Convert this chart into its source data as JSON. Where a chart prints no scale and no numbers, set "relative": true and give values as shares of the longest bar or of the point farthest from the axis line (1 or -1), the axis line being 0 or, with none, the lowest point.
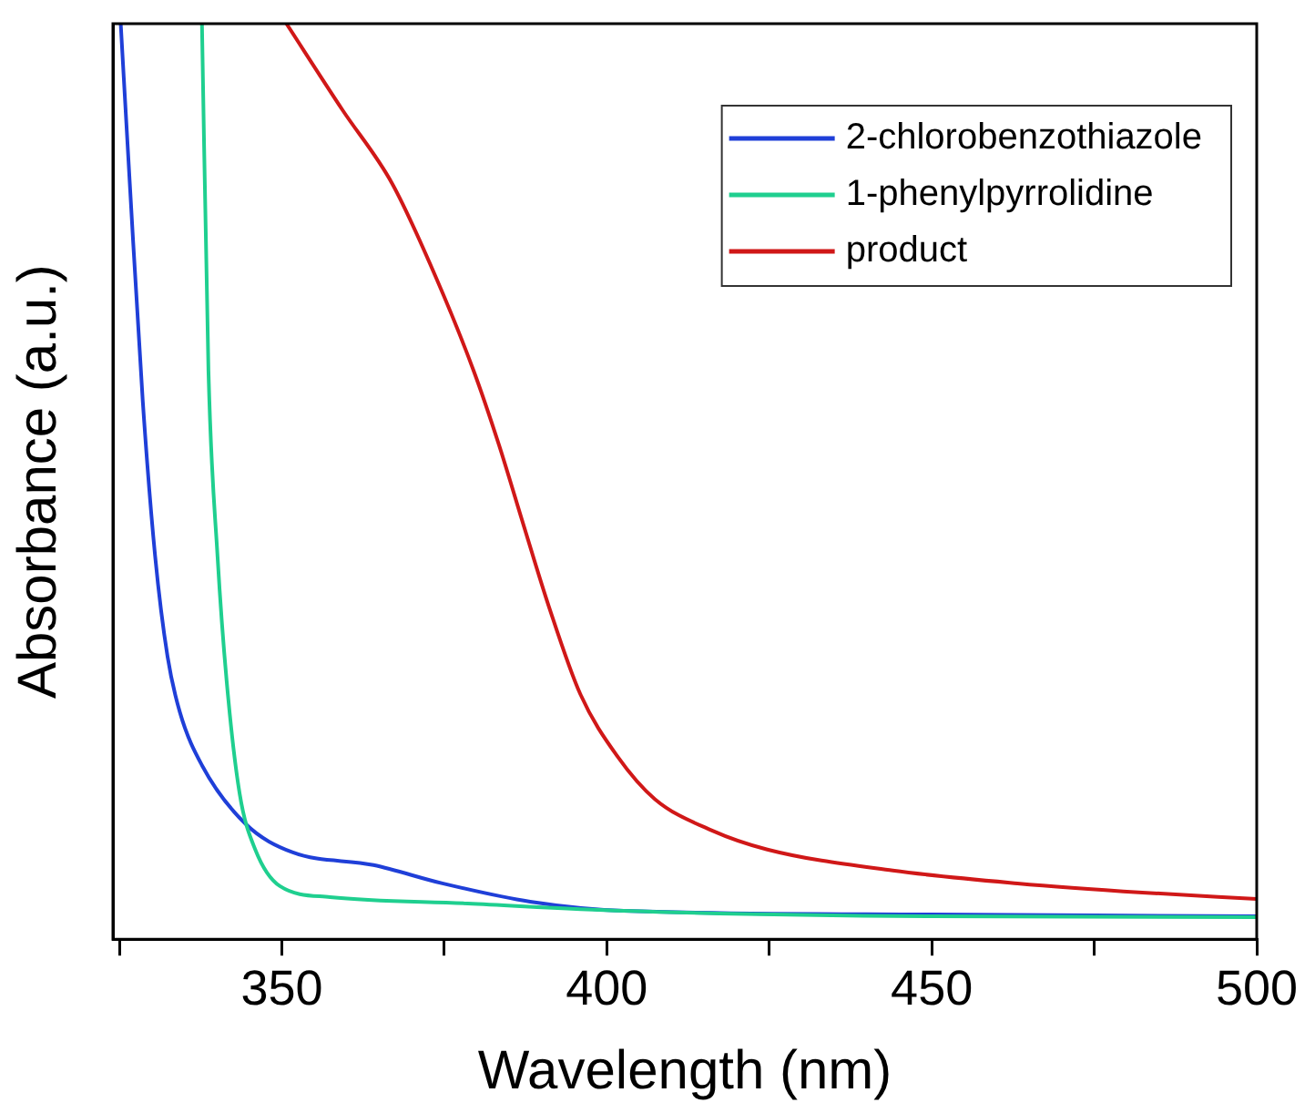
{
  "chart_data": {
    "type": "line",
    "xlabel": "Wavelength (nm)",
    "ylabel": "Absorbance (a.u.)",
    "relative": true,
    "xlim": [
      324,
      500
    ],
    "xticks": [
      {
        "value": 325,
        "label": null
      },
      350,
      {
        "value": 375,
        "label": null
      },
      400,
      {
        "value": 425,
        "label": null
      },
      450,
      {
        "value": 475,
        "label": null
      },
      500
    ],
    "tick_labels": "x",
    "grid": false,
    "legend": "top right",
    "marker": "none",
    "line_style": "solid",
    "series": [
      {
        "name": "2-chlorobenzothiazole",
        "color": "#1f3fd8",
        "x": [
          325.2,
          326.6,
          328.6,
          330.5,
          332.4,
          334.3,
          337.7,
          344.4,
          351.6,
          364.1,
          374.7,
          388.2,
          402.6,
          450,
          500
        ],
        "values": [
          1,
          0.825,
          0.587,
          0.418,
          0.309,
          0.248,
          0.19,
          0.126,
          0.095,
          0.081,
          0.061,
          0.041,
          0.031,
          0.027,
          0.025
        ]
      },
      {
        "name": "1-phenylpyrrolidine",
        "color": "#1fcf8f",
        "x": [
          337.7,
          338.7,
          340.1,
          341.5,
          343.5,
          345.9,
          349.7,
          357.4,
          378.6,
          402.6,
          450,
          500
        ],
        "values": [
          1,
          0.621,
          0.418,
          0.282,
          0.159,
          0.098,
          0.058,
          0.046,
          0.039,
          0.031,
          0.025,
          0.024
        ]
      },
      {
        "name": "product",
        "color": "#d01818",
        "x": [
          350.7,
          359.3,
          367,
          373.7,
          379.5,
          383.4,
          387.2,
          391.1,
          395.9,
          401.6,
          407.4,
          416.1,
          424.7,
          444,
          463.2,
          482.4,
          500
        ],
        "values": [
          1,
          0.906,
          0.825,
          0.723,
          0.621,
          0.54,
          0.452,
          0.363,
          0.268,
          0.2,
          0.153,
          0.119,
          0.098,
          0.075,
          0.061,
          0.051,
          0.044
        ]
      }
    ]
  }
}
